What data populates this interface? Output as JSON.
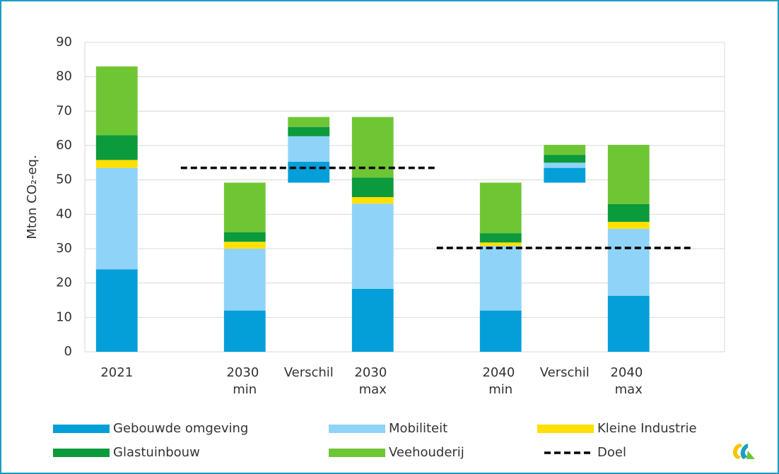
{
  "chart_data": {
    "type": "stacked_bar",
    "ylabel": "Mton CO₂-eq.",
    "categories": [
      "2021",
      null,
      "2030 min",
      "Verschil",
      "2030 max",
      null,
      "2040 min",
      "Verschil",
      "2040 max",
      null
    ],
    "offsets": [
      null,
      null,
      null,
      49.2,
      null,
      null,
      null,
      49.2,
      null,
      null
    ],
    "series": [
      {
        "name": "Gebouwde omgeving",
        "color": "#049fd9",
        "values": [
          24,
          null,
          12,
          6.1,
          18.3,
          null,
          12,
          4.3,
          16.3,
          null
        ]
      },
      {
        "name": "Mobiliteit",
        "color": "#8fd3f8",
        "values": [
          29.5,
          null,
          18,
          7.4,
          24.8,
          null,
          18.8,
          1.5,
          19.5,
          null
        ]
      },
      {
        "name": "Kleine Industrie",
        "color": "#ffe000",
        "values": [
          2.3,
          null,
          2,
          0,
          1.9,
          null,
          1,
          0,
          2,
          null
        ]
      },
      {
        "name": "Glastuinbouw",
        "color": "#0b9a3c",
        "values": [
          7.2,
          null,
          2.8,
          2.7,
          5.7,
          null,
          2.7,
          2.3,
          5.2,
          null
        ]
      },
      {
        "name": "Veehouderij",
        "color": "#6fc635",
        "values": [
          20,
          null,
          14.4,
          2.9,
          17.6,
          null,
          14.7,
          2.9,
          17.2,
          null
        ]
      }
    ],
    "doel": {
      "name": "Doel",
      "color": "#000000",
      "segments": [
        {
          "value": 53.5,
          "x": [
            1,
            5
          ]
        },
        {
          "value": 30.2,
          "x": [
            5,
            9
          ]
        }
      ]
    },
    "ylim": [
      0,
      90
    ],
    "yticks": [
      0,
      10,
      20,
      30,
      40,
      50,
      60,
      70,
      80,
      90
    ],
    "grid": true
  }
}
